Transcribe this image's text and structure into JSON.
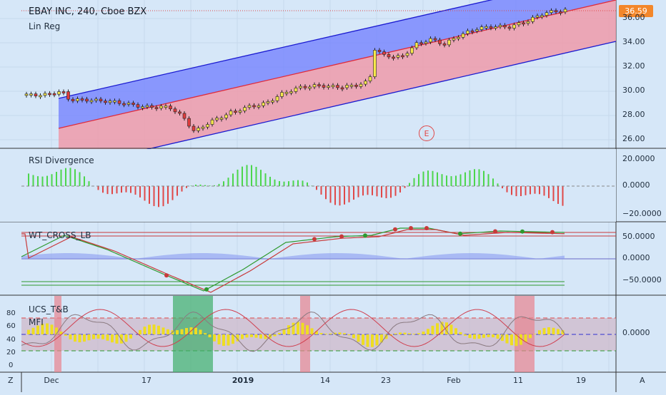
{
  "header": {
    "title": "EBAY INC, 240, Cboe BZX",
    "subtitle": "Lin Reg"
  },
  "last_price": "36.59",
  "earnings_marker": "E",
  "panes": {
    "price": {
      "y_ticks": [
        "36.00",
        "34.00",
        "32.00",
        "30.00",
        "28.00",
        "26.00"
      ]
    },
    "rsi": {
      "title": "RSI Divergence",
      "y_ticks": [
        "20.0000",
        "0.0000",
        "−20.0000"
      ]
    },
    "wt": {
      "title": "WT_CROSS_LB",
      "y_ticks": [
        "50.0000",
        "0.0000",
        "−50.0000"
      ]
    },
    "ucs": {
      "title": "UCS_T&B",
      "subtitle": "MFI",
      "left_ticks": [
        "80",
        "60",
        "40",
        "20",
        "0"
      ],
      "y_ticks": [
        "0.0000"
      ]
    }
  },
  "x_axis": {
    "labels": [
      "Dec",
      "17",
      "2019",
      "14",
      "23",
      "Feb",
      "11",
      "19"
    ],
    "bold_label": "2019"
  },
  "corner_labels": {
    "left": "Z",
    "right": "A"
  },
  "colors": {
    "background": "#d6e7f8",
    "up_candle": "#f6e84c",
    "down_candle": "#e03c3c",
    "regression_upper_fill": "#6f7cff",
    "regression_lower_fill": "#ee9aaa",
    "rsi_positive": "#4cd64c",
    "rsi_negative": "#e04848",
    "last_price_tag": "#f3872a"
  }
}
